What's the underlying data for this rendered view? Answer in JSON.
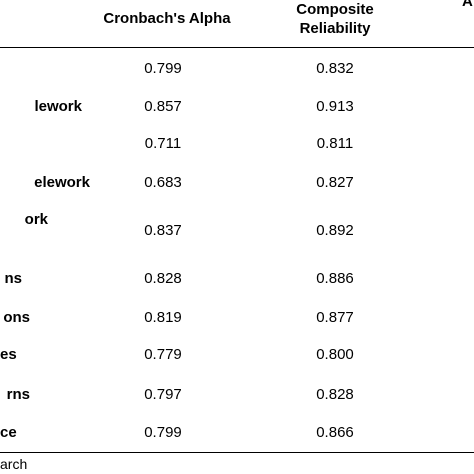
{
  "table": {
    "headers": {
      "cronbach": "Cronbach's Alpha",
      "composite_line1": "Composite",
      "composite_line2": "Reliability",
      "edge_fragment": "A"
    },
    "rows": [
      {
        "label": "",
        "cronbach": "0.799",
        "composite": "0.832"
      },
      {
        "label": "lework",
        "cronbach": "0.857",
        "composite": "0.913"
      },
      {
        "label": "",
        "cronbach": "0.711",
        "composite": "0.811"
      },
      {
        "label": "elework",
        "cronbach": "0.683",
        "composite": "0.827"
      },
      {
        "label": "ork",
        "cronbach": "0.837",
        "composite": "0.892"
      },
      {
        "label": "ns",
        "cronbach": "0.828",
        "composite": "0.886"
      },
      {
        "label": "ons",
        "cronbach": "0.819",
        "composite": "0.877"
      },
      {
        "label": "es",
        "cronbach": "0.779",
        "composite": "0.800"
      },
      {
        "label": "rns",
        "cronbach": "0.797",
        "composite": "0.828"
      },
      {
        "label": "ce",
        "cronbach": "0.799",
        "composite": "0.866"
      }
    ]
  },
  "footnote": "arch"
}
